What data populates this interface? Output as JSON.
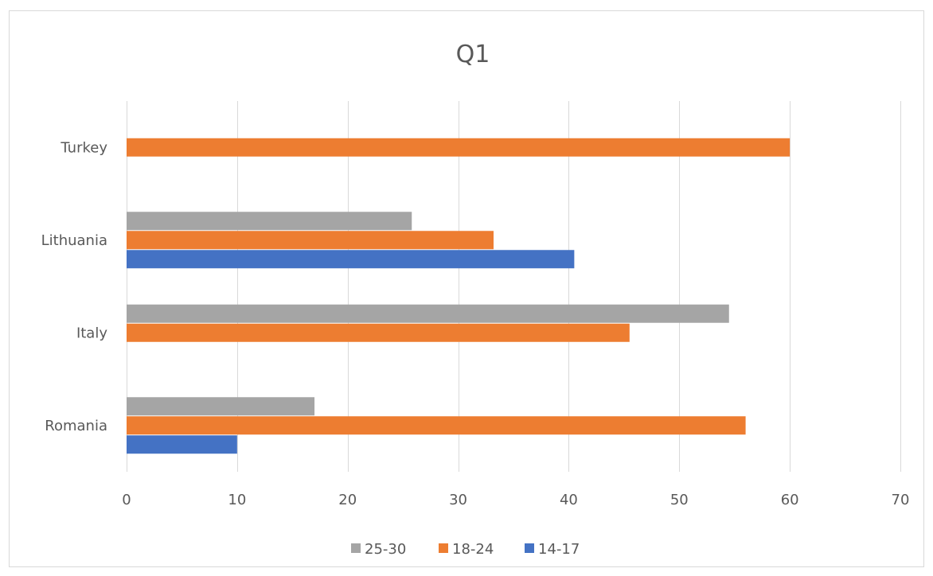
{
  "chart_data": {
    "type": "bar",
    "orientation": "horizontal",
    "title": "Q1",
    "xlabel": "",
    "ylabel": "",
    "categories": [
      "Romania",
      "Italy",
      "Lithuania",
      "Turkey"
    ],
    "series": [
      {
        "name": "25-30",
        "color": "#a5a5a5",
        "values": [
          17,
          54.5,
          25.8,
          null
        ]
      },
      {
        "name": "18-24",
        "color": "#ed7d31",
        "values": [
          56,
          45.5,
          33.2,
          60
        ]
      },
      {
        "name": "14-17",
        "color": "#4472c4",
        "values": [
          10,
          null,
          40.5,
          null
        ]
      }
    ],
    "xlim": [
      0,
      70
    ],
    "xticks": [
      0,
      10,
      20,
      30,
      40,
      50,
      60,
      70
    ],
    "grid": "vertical",
    "legend_position": "bottom"
  }
}
